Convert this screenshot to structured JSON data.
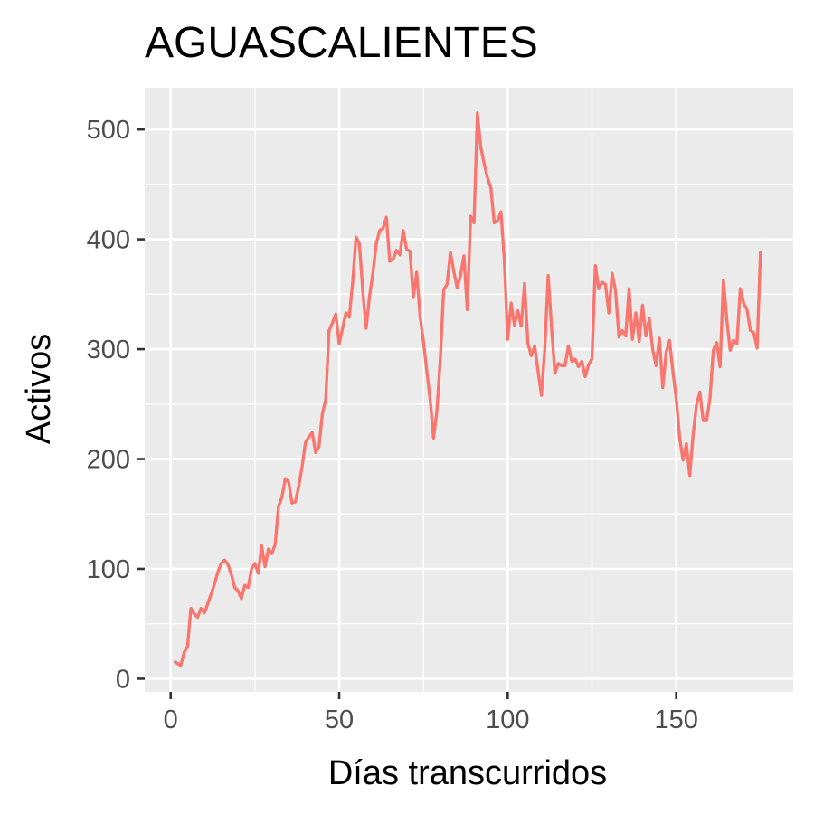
{
  "chart_data": {
    "type": "line",
    "title": "AGUASCALIENTES",
    "xlabel": "Días transcurridos",
    "ylabel": "Activos",
    "xlim": [
      -7.7,
      184.7
    ],
    "ylim": [
      -12,
      538
    ],
    "x_ticks": [
      0,
      50,
      100,
      150
    ],
    "y_ticks": [
      0,
      100,
      200,
      300,
      400,
      500
    ],
    "x_tick_labels": [
      "0",
      "50",
      "100",
      "150"
    ],
    "y_tick_labels": [
      "0",
      "100",
      "200",
      "300",
      "400",
      "500"
    ],
    "grid": true,
    "legend": "none",
    "background_color": "#ebebeb",
    "line_color": "#f8766d",
    "series": [
      {
        "x": [
          1,
          2,
          3,
          4,
          5,
          6,
          7,
          8,
          9,
          10,
          11,
          12,
          13,
          14,
          15,
          16,
          17,
          18,
          19,
          20,
          21,
          22,
          23,
          24,
          25,
          26,
          27,
          28,
          29,
          30,
          31,
          32,
          33,
          34,
          35,
          36,
          37,
          38,
          39,
          40,
          41,
          42,
          43,
          44,
          45,
          46,
          47,
          48,
          49,
          50,
          51,
          52,
          53,
          54,
          55,
          56,
          57,
          58,
          59,
          60,
          61,
          62,
          63,
          64,
          65,
          66,
          67,
          68,
          69,
          70,
          71,
          72,
          73,
          74,
          75,
          76,
          77,
          78,
          79,
          80,
          81,
          82,
          83,
          84,
          85,
          86,
          87,
          88,
          89,
          90,
          91,
          92,
          93,
          94,
          95,
          96,
          97,
          98,
          99,
          100,
          101,
          102,
          103,
          104,
          105,
          106,
          107,
          108,
          109,
          110,
          111,
          112,
          113,
          114,
          115,
          116,
          117,
          118,
          119,
          120,
          121,
          122,
          123,
          124,
          125,
          126,
          127,
          128,
          129,
          130,
          131,
          132,
          133,
          134,
          135,
          136,
          137,
          138,
          139,
          140,
          141,
          142,
          143,
          144,
          145,
          146,
          147,
          148,
          149,
          150,
          151,
          152,
          153,
          154,
          155,
          156,
          157,
          158,
          159,
          160,
          161,
          162,
          163,
          164,
          165,
          166,
          167,
          168,
          169,
          170,
          171,
          172,
          173,
          174,
          175
        ],
        "y": [
          16,
          14,
          12,
          24,
          29,
          64,
          59,
          56,
          64,
          60,
          68,
          77,
          86,
          97,
          105,
          108,
          104,
          95,
          83,
          80,
          73,
          85,
          83,
          100,
          105,
          96,
          121,
          102,
          118,
          114,
          122,
          157,
          165,
          182,
          179,
          160,
          161,
          175,
          193,
          215,
          220,
          224,
          206,
          211,
          241,
          254,
          317,
          324,
          332,
          305,
          319,
          333,
          329,
          361,
          402,
          396,
          353,
          319,
          348,
          369,
          396,
          408,
          410,
          420,
          380,
          382,
          390,
          386,
          408,
          391,
          389,
          347,
          370,
          330,
          307,
          280,
          254,
          219,
          244,
          291,
          354,
          359,
          388,
          371,
          356,
          367,
          385,
          336,
          421,
          415,
          515,
          484,
          469,
          456,
          447,
          415,
          417,
          425,
          381,
          309,
          342,
          322,
          335,
          321,
          360,
          305,
          294,
          303,
          280,
          258,
          300,
          367,
          320,
          278,
          287,
          285,
          285,
          303,
          289,
          291,
          284,
          289,
          275,
          286,
          291,
          376,
          355,
          361,
          359,
          333,
          369,
          353,
          311,
          317,
          312,
          355,
          309,
          333,
          307,
          340,
          312,
          328,
          300,
          285,
          310,
          265,
          297,
          308,
          280,
          255,
          220,
          199,
          214,
          185,
          222,
          249,
          261,
          235,
          235,
          255,
          299,
          306,
          284,
          363,
          327,
          299,
          308,
          305,
          355,
          342,
          336,
          317,
          315,
          301,
          389
        ]
      }
    ]
  }
}
